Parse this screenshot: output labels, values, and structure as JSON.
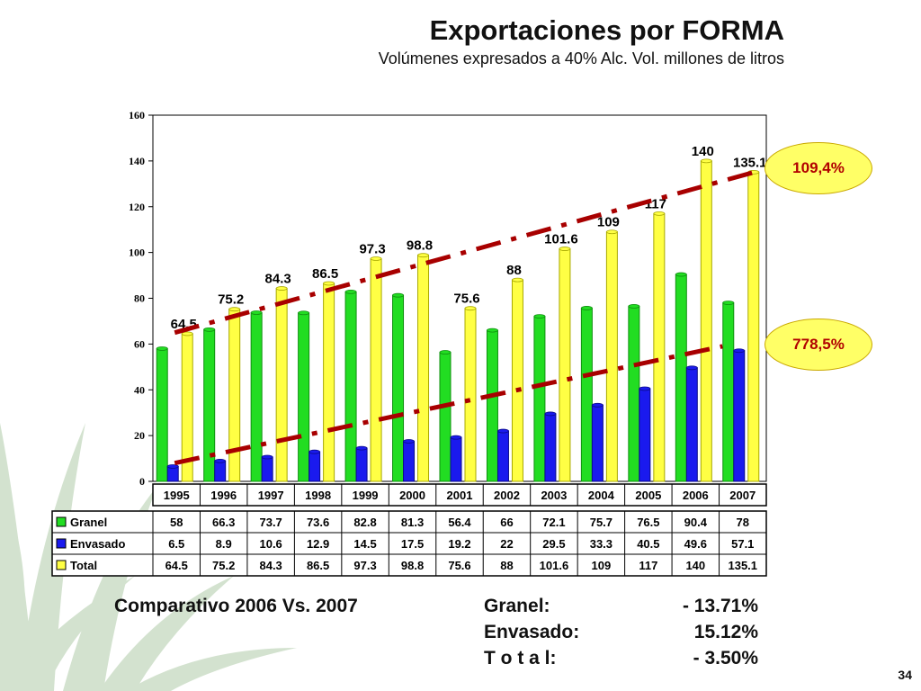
{
  "slide": {
    "title": "Exportaciones por FORMA",
    "subtitle": "Volúmenes expresados a 40% Alc. Vol. millones de litros",
    "page_number": "34"
  },
  "colors": {
    "granel": "#22dd22",
    "envasado": "#1a1aee",
    "total": "#ffff44",
    "trend": "#a80000",
    "callout_fill": "#ffff66",
    "callout_text": "#b10000"
  },
  "chart_data": {
    "type": "bar",
    "categories": [
      "1995",
      "1996",
      "1997",
      "1998",
      "1999",
      "2000",
      "2001",
      "2002",
      "2003",
      "2004",
      "2005",
      "2006",
      "2007"
    ],
    "series": [
      {
        "name": "Granel",
        "values": [
          58,
          66.3,
          73.7,
          73.6,
          82.8,
          81.3,
          56.4,
          66,
          72.1,
          75.7,
          76.5,
          90.4,
          78
        ]
      },
      {
        "name": "Envasado",
        "values": [
          6.5,
          8.9,
          10.6,
          12.9,
          14.5,
          17.5,
          19.2,
          22,
          29.5,
          33.3,
          40.5,
          49.6,
          57.1
        ]
      },
      {
        "name": "Total",
        "values": [
          64.5,
          75.2,
          84.3,
          86.5,
          97.3,
          98.8,
          75.6,
          88,
          101.6,
          109,
          117,
          140,
          135.1
        ]
      }
    ],
    "total_labels": [
      "64.5",
      "75.2",
      "84.3",
      "86.5",
      "97.3",
      "98.8",
      "75.6",
      "88",
      "101.6",
      "109",
      "117",
      "140",
      "135.1"
    ],
    "table_rows": [
      {
        "name": "Granel",
        "cells": [
          "58",
          "66.3",
          "73.7",
          "73.6",
          "82.8",
          "81.3",
          "56.4",
          "66",
          "72.1",
          "75.7",
          "76.5",
          "90.4",
          "78"
        ]
      },
      {
        "name": "Envasado",
        "cells": [
          "6.5",
          "8.9",
          "10.6",
          "12.9",
          "14.5",
          "17.5",
          "19.2",
          "22",
          "29.5",
          "33.3",
          "40.5",
          "49.6",
          "57.1"
        ]
      },
      {
        "name": "Total",
        "cells": [
          "64.5",
          "75.2",
          "84.3",
          "86.5",
          "97.3",
          "98.8",
          "75.6",
          "88",
          "101.6",
          "109",
          "117",
          "140",
          "135.1"
        ]
      }
    ],
    "y_ticks": [
      "0",
      "20",
      "40",
      "60",
      "80",
      "100",
      "120",
      "140",
      "160"
    ],
    "ylim": [
      0,
      160
    ],
    "trend_lines": [
      {
        "series": "Total",
        "from": [
          "1995",
          65
        ],
        "to": [
          "2007",
          135
        ]
      },
      {
        "series": "Envasado",
        "from": [
          "1995",
          8
        ],
        "to": [
          "2006",
          59
        ]
      }
    ],
    "annotations": [
      "109,4%",
      "778,5%"
    ]
  },
  "comparison": {
    "title": "Comparativo 2006 Vs. 2007",
    "rows": [
      {
        "label": "Granel:",
        "value": "- 13.71%"
      },
      {
        "label": "Envasado:",
        "value": "15.12%"
      },
      {
        "label": "T o t a l:",
        "value": "- 3.50%"
      }
    ]
  }
}
